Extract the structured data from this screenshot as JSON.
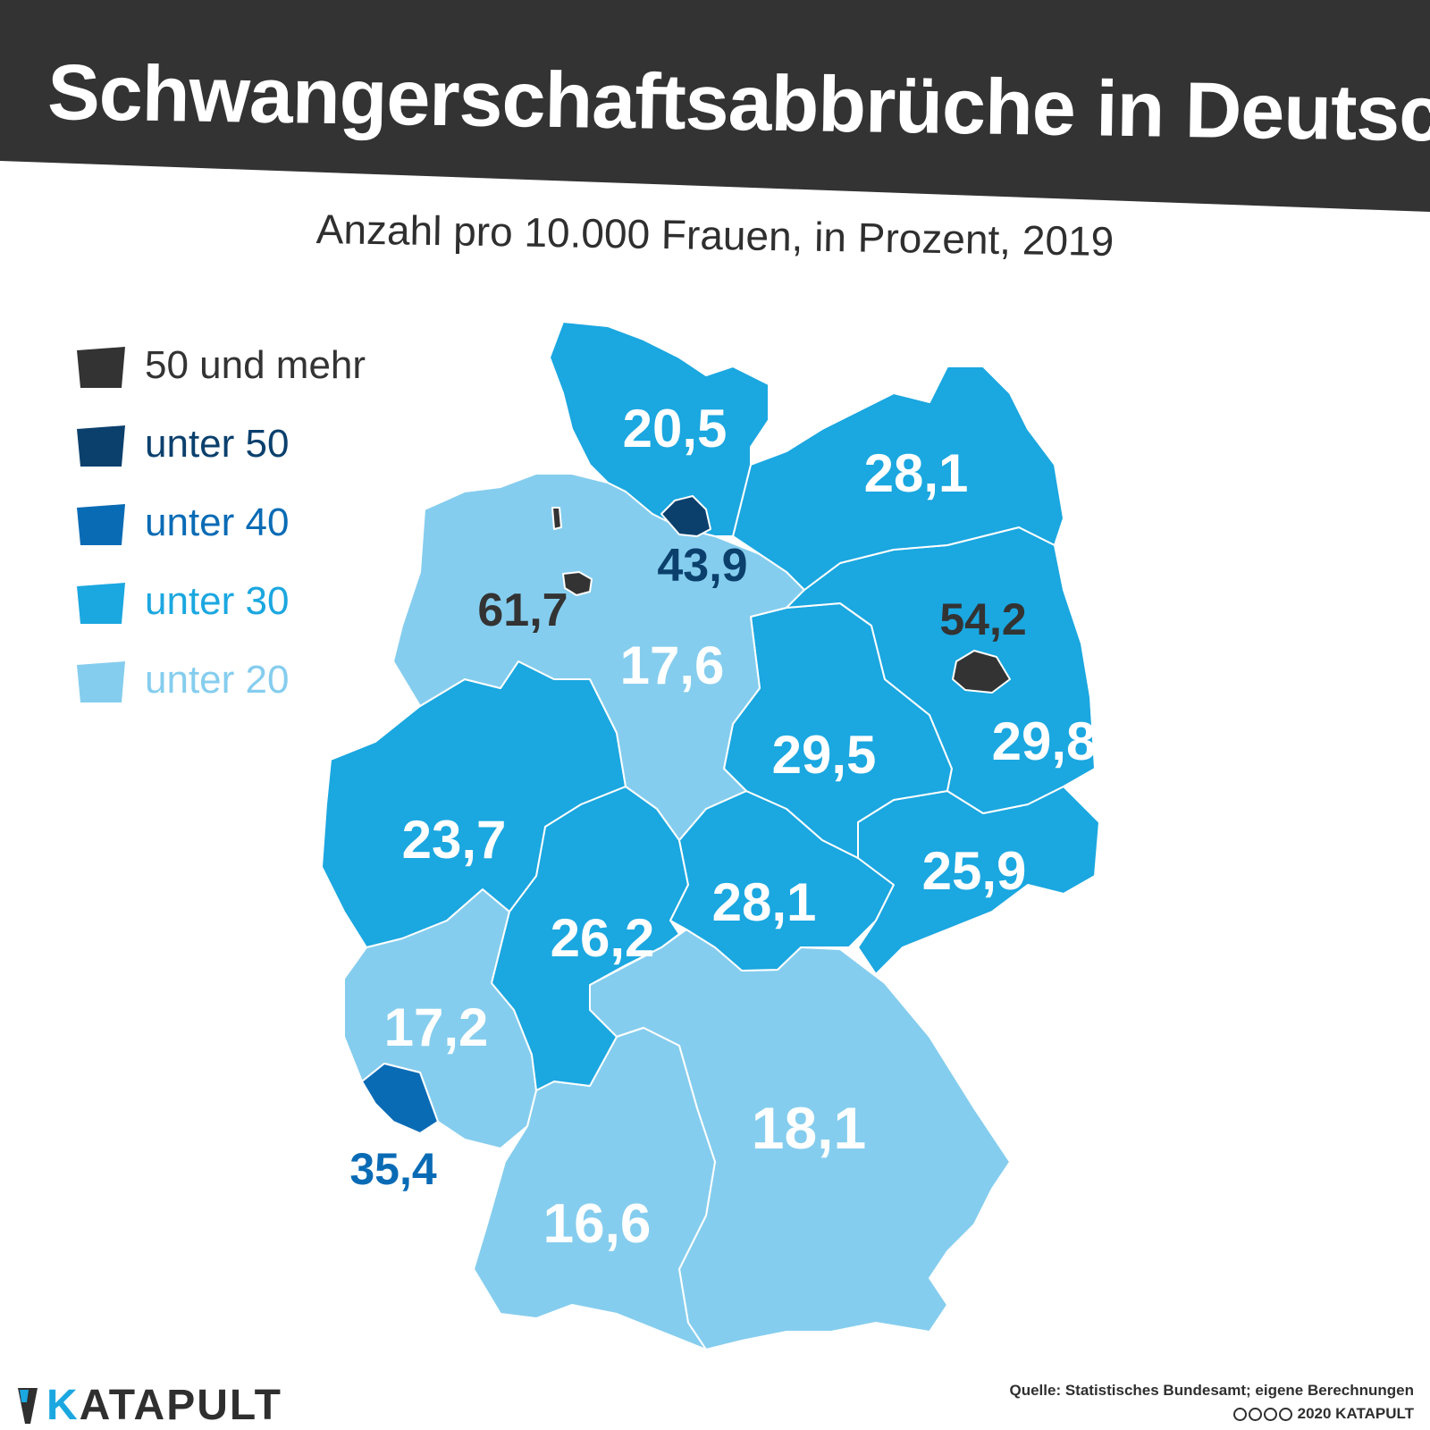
{
  "title": "Schwangerschaftsabbrüche in Deutschland",
  "subtitle": "Anzahl pro 10.000 Frauen, in Prozent, 2019",
  "colors": {
    "header_bg": "#333333",
    "over_50": "#333333",
    "under_50": "#0b406d",
    "under_40": "#0a6bb5",
    "under_30": "#1ba7e0",
    "under_20": "#85cdee",
    "text_dark": "#333333"
  },
  "legend": [
    {
      "label": "50 und mehr",
      "color": "#333333",
      "text_color": "#333333"
    },
    {
      "label": "unter 50",
      "color": "#0b406d",
      "text_color": "#0b406d"
    },
    {
      "label": "unter 40",
      "color": "#0a6bb5",
      "text_color": "#0a6bb5"
    },
    {
      "label": "unter 30",
      "color": "#1ba7e0",
      "text_color": "#1ba7e0"
    },
    {
      "label": "unter 20",
      "color": "#85cdee",
      "text_color": "#85cdee"
    }
  ],
  "states": [
    {
      "id": "SH",
      "value": "20,5",
      "category": "unter 30"
    },
    {
      "id": "MV",
      "value": "28,1",
      "category": "unter 30"
    },
    {
      "id": "HH",
      "value": "43,9",
      "category": "unter 50"
    },
    {
      "id": "HB",
      "value": "61,7",
      "category": "50 und mehr"
    },
    {
      "id": "NI",
      "value": "17,6",
      "category": "unter 20"
    },
    {
      "id": "BE",
      "value": "54,2",
      "category": "50 und mehr"
    },
    {
      "id": "BB",
      "value": "29,8",
      "category": "unter 30"
    },
    {
      "id": "ST",
      "value": "29,5",
      "category": "unter 30"
    },
    {
      "id": "NW",
      "value": "23,7",
      "category": "unter 30"
    },
    {
      "id": "HE",
      "value": "26,2",
      "category": "unter 30"
    },
    {
      "id": "TH",
      "value": "28,1",
      "category": "unter 30"
    },
    {
      "id": "SN",
      "value": "25,9",
      "category": "unter 30"
    },
    {
      "id": "RP",
      "value": "17,2",
      "category": "unter 20"
    },
    {
      "id": "SL",
      "value": "35,4",
      "category": "unter 40"
    },
    {
      "id": "BY",
      "value": "18,1",
      "category": "unter 20"
    },
    {
      "id": "BW",
      "value": "16,6",
      "category": "unter 20"
    }
  ],
  "logo": {
    "text_k": "K",
    "text_rest": "ATAPULT"
  },
  "source": "Quelle: Statistisches Bundesamt; eigene Berechnungen",
  "credit": "2020 KATAPULT"
}
